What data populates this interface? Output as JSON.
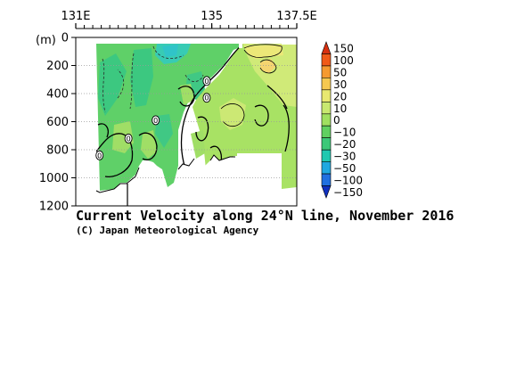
{
  "chart_data": {
    "type": "heatmap",
    "title": "Current Velocity along 24°N line, November 2016",
    "credit": "(C) Japan Meteorological Agency",
    "xlabel": "",
    "ylabel": "(m)",
    "x_ticks": [
      "131E",
      "135",
      "137.5E"
    ],
    "x_range": [
      131.0,
      137.5
    ],
    "y_ticks": [
      "0",
      "200",
      "400",
      "600",
      "800",
      "1000",
      "1200"
    ],
    "y_range": [
      0,
      1200
    ],
    "y_inverted": true,
    "colorbar": {
      "labels": [
        "150",
        "100",
        "50",
        "30",
        "20",
        "10",
        "0",
        "−10",
        "−20",
        "−30",
        "−50",
        "−100",
        "−150"
      ],
      "colors": [
        "#d83010",
        "#f05a18",
        "#f59a30",
        "#f5c850",
        "#e8e870",
        "#c8e870",
        "#a0e060",
        "#60d060",
        "#3cc878",
        "#20c8b0",
        "#20a8e0",
        "#2070e0",
        "#1030c0"
      ]
    },
    "contour_labels": [
      "0",
      "0",
      "0",
      "0",
      "0",
      "0"
    ]
  }
}
